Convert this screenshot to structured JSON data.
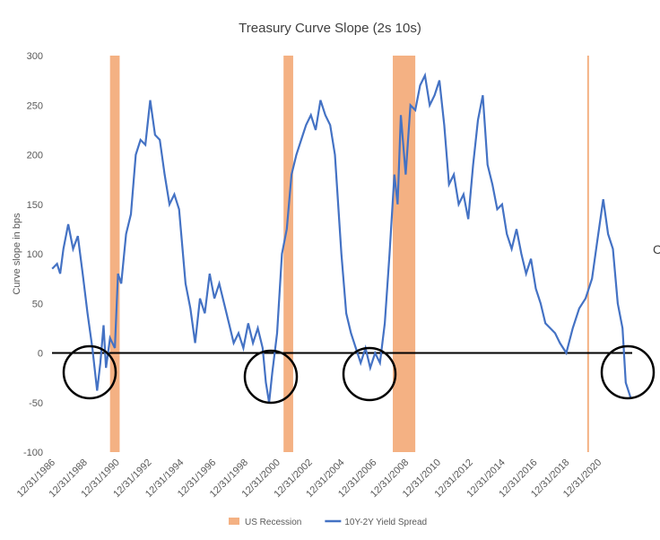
{
  "chart_data": {
    "type": "line",
    "title": "Treasury Curve Slope (2s 10s)",
    "y_label": "Curve slope in bps",
    "annotations": [
      "C"
    ],
    "xlim": [
      1986.99,
      2023.1
    ],
    "xticks": [
      {
        "value": 1986.99,
        "label": "12/31/1986"
      },
      {
        "value": 1988.99,
        "label": "12/31/1988"
      },
      {
        "value": 1990.99,
        "label": "12/31/1990"
      },
      {
        "value": 1992.99,
        "label": "12/31/1992"
      },
      {
        "value": 1994.99,
        "label": "12/31/1994"
      },
      {
        "value": 1996.99,
        "label": "12/31/1996"
      },
      {
        "value": 1998.99,
        "label": "12/31/1998"
      },
      {
        "value": 2000.99,
        "label": "12/31/2000"
      },
      {
        "value": 2002.99,
        "label": "12/31/2002"
      },
      {
        "value": 2004.99,
        "label": "12/31/2004"
      },
      {
        "value": 2006.99,
        "label": "12/31/2006"
      },
      {
        "value": 2008.99,
        "label": "12/31/2008"
      },
      {
        "value": 2010.99,
        "label": "12/31/2010"
      },
      {
        "value": 2012.99,
        "label": "12/31/2012"
      },
      {
        "value": 2014.99,
        "label": "12/31/2014"
      },
      {
        "value": 2016.99,
        "label": "12/31/2016"
      },
      {
        "value": 2018.99,
        "label": "12/31/2018"
      },
      {
        "value": 2020.99,
        "label": "12/31/2020"
      }
    ],
    "ylim": [
      -100,
      300
    ],
    "yticks": [
      -100,
      -50,
      0,
      50,
      100,
      150,
      200,
      250,
      300
    ],
    "series": [
      {
        "name": "US Recession",
        "kind": "band",
        "color": "#f4b183",
        "ranges": [
          [
            1990.6,
            1991.2
          ],
          [
            2001.4,
            2002.0
          ],
          [
            2008.2,
            2009.6
          ],
          [
            2020.3,
            2020.4
          ]
        ]
      },
      {
        "name": "10Y-2Y Yield Spread",
        "kind": "line",
        "color": "#4472c4",
        "x": [
          1987.0,
          1987.3,
          1987.5,
          1987.7,
          1988.0,
          1988.3,
          1988.6,
          1988.9,
          1989.2,
          1989.5,
          1989.8,
          1990.0,
          1990.2,
          1990.35,
          1990.6,
          1990.9,
          1991.1,
          1991.3,
          1991.6,
          1991.9,
          1992.2,
          1992.5,
          1992.8,
          1993.1,
          1993.4,
          1993.7,
          1994.0,
          1994.3,
          1994.6,
          1994.9,
          1995.3,
          1995.6,
          1995.9,
          1996.2,
          1996.5,
          1996.8,
          1997.1,
          1997.4,
          1997.7,
          1998.0,
          1998.3,
          1998.6,
          1998.9,
          1999.2,
          1999.5,
          1999.8,
          2000.1,
          2000.3,
          2000.5,
          2000.7,
          2001.0,
          2001.3,
          2001.6,
          2001.9,
          2002.2,
          2002.5,
          2002.8,
          2003.1,
          2003.4,
          2003.7,
          2004.0,
          2004.3,
          2004.6,
          2005.0,
          2005.3,
          2005.6,
          2005.9,
          2006.2,
          2006.5,
          2006.8,
          2007.1,
          2007.4,
          2007.7,
          2008.0,
          2008.3,
          2008.5,
          2008.7,
          2009.0,
          2009.3,
          2009.6,
          2009.9,
          2010.2,
          2010.5,
          2010.8,
          2011.1,
          2011.4,
          2011.7,
          2012.0,
          2012.3,
          2012.6,
          2012.9,
          2013.2,
          2013.5,
          2013.8,
          2014.1,
          2014.4,
          2014.7,
          2015.0,
          2015.3,
          2015.6,
          2015.9,
          2016.2,
          2016.5,
          2016.8,
          2017.1,
          2017.4,
          2017.7,
          2018.0,
          2018.3,
          2018.6,
          2019.0,
          2019.4,
          2019.8,
          2020.2,
          2020.6,
          2020.9,
          2021.3,
          2021.6,
          2021.9,
          2022.2,
          2022.5,
          2022.7,
          2023.0
        ],
        "values": [
          85,
          90,
          80,
          105,
          130,
          105,
          118,
          80,
          40,
          5,
          -38,
          -10,
          28,
          -15,
          15,
          5,
          80,
          70,
          120,
          140,
          200,
          215,
          210,
          255,
          220,
          215,
          180,
          150,
          160,
          145,
          70,
          45,
          10,
          55,
          40,
          80,
          55,
          70,
          50,
          30,
          10,
          20,
          5,
          30,
          10,
          25,
          5,
          -30,
          -50,
          -20,
          20,
          100,
          125,
          180,
          200,
          215,
          230,
          240,
          225,
          255,
          240,
          230,
          200,
          100,
          40,
          20,
          5,
          -10,
          5,
          -15,
          0,
          -10,
          30,
          100,
          180,
          150,
          240,
          180,
          250,
          245,
          270,
          280,
          250,
          260,
          275,
          230,
          170,
          180,
          150,
          160,
          135,
          190,
          235,
          260,
          190,
          170,
          145,
          150,
          120,
          105,
          125,
          100,
          80,
          95,
          65,
          50,
          30,
          25,
          20,
          10,
          0,
          25,
          45,
          55,
          75,
          110,
          155,
          120,
          105,
          50,
          25,
          -30,
          -45
        ]
      }
    ]
  }
}
